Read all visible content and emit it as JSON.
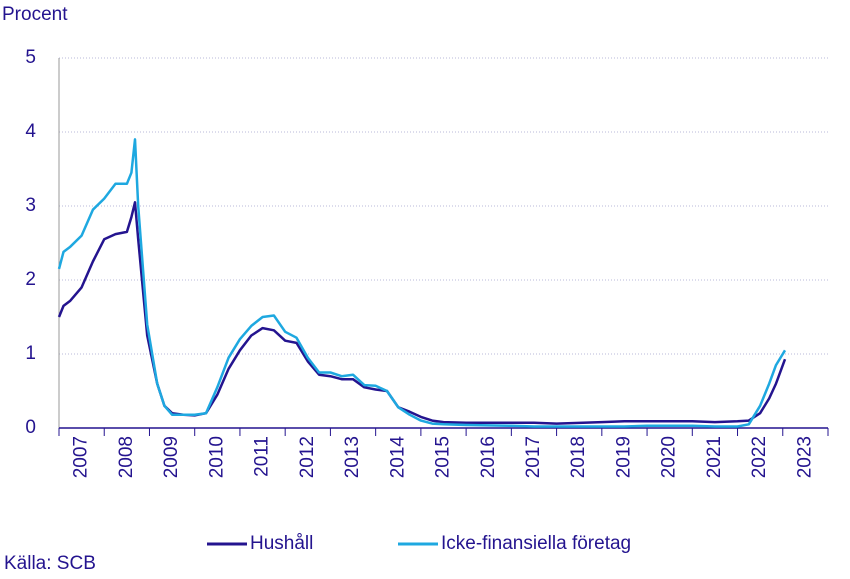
{
  "chart_data": {
    "type": "line",
    "y_label": "Procent",
    "source": "Källa: SCB",
    "x": [
      2007,
      2007.1,
      2007.25,
      2007.5,
      2007.75,
      2008,
      2008.25,
      2008.5,
      2008.6,
      2008.68,
      2008.75,
      2008.95,
      2009.17,
      2009.33,
      2009.5,
      2009.75,
      2010,
      2010.25,
      2010.5,
      2010.75,
      2011,
      2011.25,
      2011.5,
      2011.75,
      2012,
      2012.25,
      2012.5,
      2012.75,
      2013,
      2013.25,
      2013.5,
      2013.75,
      2014,
      2014.25,
      2014.5,
      2014.75,
      2015,
      2015.25,
      2015.5,
      2016,
      2017,
      2017.5,
      2018,
      2019,
      2019.5,
      2020,
      2021,
      2021.5,
      2022,
      2022.25,
      2022.5,
      2022.7,
      2022.85,
      2023.05
    ],
    "series": [
      {
        "name": "Hushåll",
        "color": "#24148f",
        "values": [
          1.5,
          1.65,
          1.72,
          1.9,
          2.25,
          2.55,
          2.62,
          2.65,
          2.85,
          3.05,
          2.55,
          1.25,
          0.6,
          0.3,
          0.2,
          0.18,
          0.17,
          0.2,
          0.45,
          0.8,
          1.05,
          1.25,
          1.35,
          1.32,
          1.18,
          1.15,
          0.9,
          0.72,
          0.7,
          0.66,
          0.66,
          0.55,
          0.52,
          0.5,
          0.28,
          0.22,
          0.15,
          0.1,
          0.08,
          0.07,
          0.07,
          0.07,
          0.06,
          0.08,
          0.09,
          0.09,
          0.09,
          0.08,
          0.09,
          0.1,
          0.2,
          0.4,
          0.6,
          0.93
        ]
      },
      {
        "name": "Icke-finansiella företag",
        "color": "#1ea8e0",
        "values": [
          2.15,
          2.38,
          2.45,
          2.6,
          2.95,
          3.1,
          3.3,
          3.3,
          3.45,
          3.9,
          3.0,
          1.4,
          0.6,
          0.3,
          0.18,
          0.18,
          0.18,
          0.2,
          0.55,
          0.95,
          1.2,
          1.38,
          1.5,
          1.52,
          1.3,
          1.22,
          0.95,
          0.75,
          0.75,
          0.7,
          0.72,
          0.58,
          0.57,
          0.5,
          0.28,
          0.18,
          0.1,
          0.06,
          0.05,
          0.04,
          0.03,
          0.02,
          0.02,
          0.02,
          0.02,
          0.03,
          0.03,
          0.02,
          0.02,
          0.05,
          0.3,
          0.6,
          0.85,
          1.05
        ]
      }
    ],
    "xlim": [
      2007,
      2024
    ],
    "xticks": [
      2007,
      2008,
      2009,
      2010,
      2011,
      2012,
      2013,
      2014,
      2015,
      2016,
      2017,
      2018,
      2019,
      2020,
      2021,
      2022,
      2023
    ],
    "ylim": [
      0,
      5
    ],
    "yticks": [
      0,
      1,
      2,
      3,
      4,
      5
    ],
    "grid": true
  }
}
